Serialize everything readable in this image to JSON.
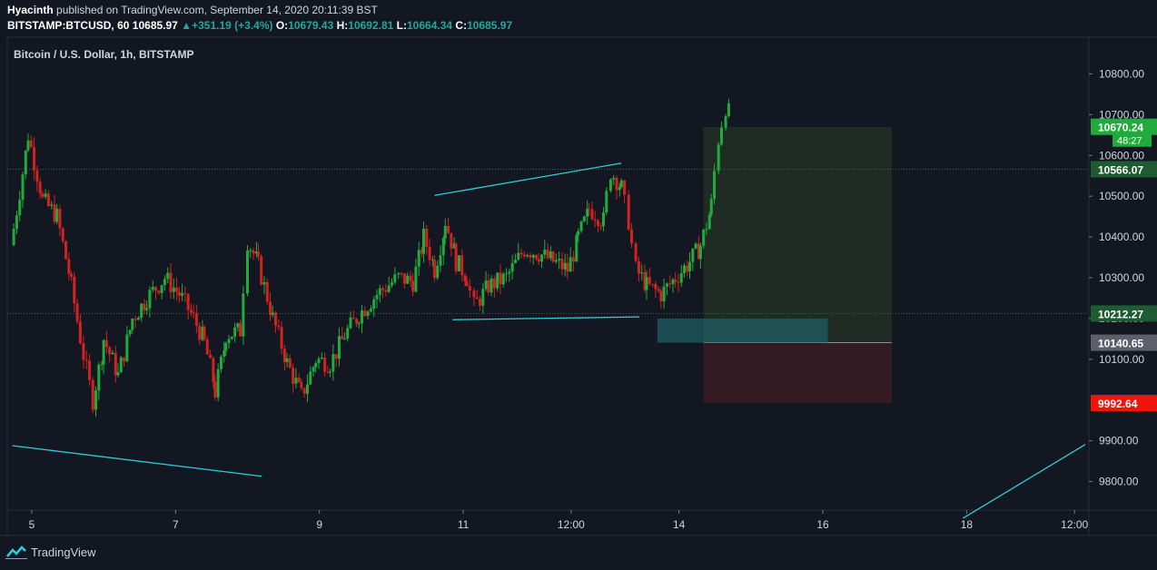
{
  "header": {
    "publisher": "Hyacinth",
    "published_text": "published on TradingView.com, September 14, 2020 20:11:39 BST",
    "symbol": "BITSTAMP:BTCUSD, 60",
    "last": "10685.97",
    "change": "+351.19 (+3.4%)",
    "o_label": "O:",
    "o_value": "10679.43",
    "h_label": "H:",
    "h_value": "10692.81",
    "l_label": "L:",
    "l_value": "10664.34",
    "c_label": "C:",
    "c_value": "10685.97"
  },
  "footer": {
    "brand": "TradingView"
  },
  "colors": {
    "background": "#131722",
    "up": "#26a69a",
    "candle_up": "#22ab3d",
    "candle_down": "#d1231f",
    "trendline": "#2ccfd9",
    "target_zone": "#1f2b23",
    "stop_zone": "#341a22",
    "entry_zone": "#1f5a60"
  },
  "chart_data": {
    "type": "candlestick",
    "title": "Bitcoin / U.S. Dollar, 1h, BITSTAMP",
    "x_ticks": [
      {
        "label": "5",
        "day": 5
      },
      {
        "label": "7",
        "day": 7
      },
      {
        "label": "9",
        "day": 9
      },
      {
        "label": "11",
        "day": 11
      },
      {
        "label": "12:00",
        "day": 12.5
      },
      {
        "label": "14",
        "day": 14
      },
      {
        "label": "16",
        "day": 16
      },
      {
        "label": "18",
        "day": 18
      },
      {
        "label": "12:00",
        "day": 19.5
      }
    ],
    "x_range": [
      4.66,
      19.7
    ],
    "y_ticks": [
      10800,
      10700,
      10600,
      10500,
      10400,
      10300,
      10200,
      10100,
      9900,
      9800
    ],
    "y_tick_labels": [
      "10800.00",
      "10700.00",
      "10600.00",
      "10500.00",
      "10400.00",
      "10300.00",
      "10200.00",
      "10100.00",
      "9900.00",
      "9800.00"
    ],
    "ylim": [
      9730,
      10890
    ],
    "price_labels": [
      {
        "value": 10670.24,
        "text": "10670.24",
        "color": "#22ab3d"
      },
      {
        "value": 10566.07,
        "text": "10566.07",
        "color": "#1e5b33"
      },
      {
        "value": 10212.27,
        "text": "10212.27",
        "color": "#1e5b33"
      },
      {
        "value": 10140.65,
        "text": "10140.65",
        "color": "#5d606b"
      },
      {
        "value": 9992.64,
        "text": "9992.64",
        "color": "#f0150c"
      }
    ],
    "countdown_label": "48:27",
    "position": {
      "entry": 10140.65,
      "target": 10670.24,
      "stop": 9992.64,
      "start_day": 14.34,
      "end_day": 16.96
    },
    "entry_zone": {
      "from": 10140.65,
      "to": 10200,
      "start_day": 13.7,
      "end_day": 16.07
    },
    "trendlines": [
      {
        "points": [
          [
            4.73,
            9888
          ],
          [
            8.2,
            9813
          ]
        ]
      },
      {
        "points": [
          [
            10.6,
            10502
          ],
          [
            13.2,
            10581
          ]
        ]
      },
      {
        "points": [
          [
            10.85,
            10197
          ],
          [
            13.45,
            10204
          ]
        ]
      },
      {
        "points": [
          [
            17.95,
            9710
          ],
          [
            19.65,
            9891
          ]
        ]
      }
    ],
    "candles_ohlc_anchor": [
      {
        "day": 4.75,
        "close": 10420
      },
      {
        "day": 4.95,
        "close": 10650
      },
      {
        "day": 5.15,
        "close": 10490
      },
      {
        "day": 5.35,
        "close": 10450
      },
      {
        "day": 5.55,
        "close": 10280
      },
      {
        "day": 5.72,
        "close": 10110
      },
      {
        "day": 5.85,
        "close": 10000
      },
      {
        "day": 6.0,
        "close": 10150
      },
      {
        "day": 6.2,
        "close": 10060
      },
      {
        "day": 6.4,
        "close": 10200
      },
      {
        "day": 6.6,
        "close": 10250
      },
      {
        "day": 6.85,
        "close": 10300
      },
      {
        "day": 7.05,
        "close": 10260
      },
      {
        "day": 7.25,
        "close": 10200
      },
      {
        "day": 7.4,
        "close": 10140
      },
      {
        "day": 7.55,
        "close": 10020
      },
      {
        "day": 7.7,
        "close": 10160
      },
      {
        "day": 7.9,
        "close": 10170
      },
      {
        "day": 8.0,
        "close": 10390
      },
      {
        "day": 8.15,
        "close": 10330
      },
      {
        "day": 8.35,
        "close": 10200
      },
      {
        "day": 8.55,
        "close": 10090
      },
      {
        "day": 8.75,
        "close": 10010
      },
      {
        "day": 8.95,
        "close": 10100
      },
      {
        "day": 9.15,
        "close": 10090
      },
      {
        "day": 9.35,
        "close": 10160
      },
      {
        "day": 9.55,
        "close": 10210
      },
      {
        "day": 9.8,
        "close": 10260
      },
      {
        "day": 10.1,
        "close": 10300
      },
      {
        "day": 10.3,
        "close": 10290
      },
      {
        "day": 10.45,
        "close": 10400
      },
      {
        "day": 10.6,
        "close": 10320
      },
      {
        "day": 10.75,
        "close": 10440
      },
      {
        "day": 10.9,
        "close": 10340
      },
      {
        "day": 11.05,
        "close": 10300
      },
      {
        "day": 11.15,
        "close": 10230
      },
      {
        "day": 11.35,
        "close": 10280
      },
      {
        "day": 11.6,
        "close": 10300
      },
      {
        "day": 11.85,
        "close": 10370
      },
      {
        "day": 12.05,
        "close": 10360
      },
      {
        "day": 12.25,
        "close": 10340
      },
      {
        "day": 12.45,
        "close": 10320
      },
      {
        "day": 12.6,
        "close": 10400
      },
      {
        "day": 12.75,
        "close": 10470
      },
      {
        "day": 12.95,
        "close": 10440
      },
      {
        "day": 13.05,
        "close": 10560
      },
      {
        "day": 13.2,
        "close": 10520
      },
      {
        "day": 13.3,
        "close": 10440
      },
      {
        "day": 13.4,
        "close": 10320
      },
      {
        "day": 13.55,
        "close": 10280
      },
      {
        "day": 13.75,
        "close": 10260
      },
      {
        "day": 13.95,
        "close": 10300
      },
      {
        "day": 14.15,
        "close": 10340
      },
      {
        "day": 14.3,
        "close": 10380
      },
      {
        "day": 14.45,
        "close": 10480
      },
      {
        "day": 14.55,
        "close": 10640
      },
      {
        "day": 14.65,
        "close": 10720
      },
      {
        "day": 14.75,
        "close": 10690
      }
    ]
  }
}
